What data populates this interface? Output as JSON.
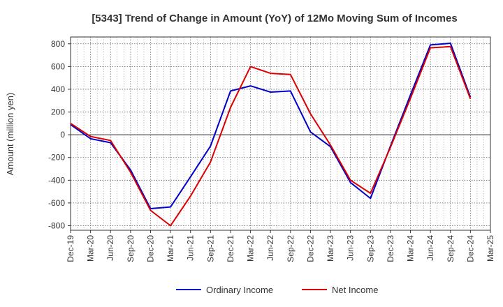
{
  "chart_data": {
    "type": "line",
    "title": "[5343]  Trend of Change in Amount (YoY) of 12Mo Moving Sum of Incomes",
    "xlabel": "",
    "ylabel": "Amount (million yen)",
    "ylim": [
      -840,
      860
    ],
    "yticks": [
      800,
      600,
      400,
      200,
      0,
      -200,
      -400,
      -600,
      -800
    ],
    "ytick_labels": [
      "800",
      "600",
      "400",
      "200",
      "0",
      "-200",
      "-400",
      "-600",
      "-800"
    ],
    "categories": [
      "Dec-19",
      "Mar-20",
      "Jun-20",
      "Sep-20",
      "Dec-20",
      "Mar-21",
      "Jun-21",
      "Sep-21",
      "Dec-21",
      "Mar-22",
      "Jun-22",
      "Sep-22",
      "Dec-22",
      "Mar-23",
      "Jun-23",
      "Sep-23",
      "Dec-23",
      "Mar-24",
      "Jun-24",
      "Sep-24",
      "Dec-24",
      "Mar-25"
    ],
    "grid": true,
    "legend_position": "bottom",
    "series": [
      {
        "name": "Ordinary Income",
        "color": "#0000cc",
        "values": [
          90,
          -35,
          -70,
          -310,
          -650,
          -635,
          -370,
          -100,
          385,
          430,
          375,
          385,
          25,
          -105,
          -420,
          -560,
          -100,
          350,
          790,
          805,
          330,
          null
        ]
      },
      {
        "name": "Net Income",
        "color": "#dd0000",
        "values": [
          100,
          -15,
          -50,
          -330,
          -665,
          -800,
          -540,
          -240,
          240,
          600,
          540,
          530,
          185,
          -90,
          -400,
          -515,
          -110,
          320,
          765,
          775,
          315,
          null
        ]
      }
    ]
  }
}
